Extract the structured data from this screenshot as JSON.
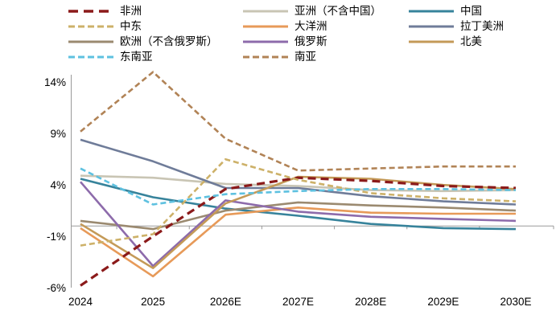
{
  "chart_data": {
    "type": "line",
    "categories": [
      "2024",
      "2025",
      "2026E",
      "2027E",
      "2028E",
      "2029E",
      "2030E"
    ],
    "series": [
      {
        "name": "非洲",
        "color": "#8b1a1a",
        "line_style": "dashed",
        "thick": true,
        "values": [
          -5.8,
          -1.0,
          3.6,
          4.7,
          4.4,
          3.9,
          3.7
        ]
      },
      {
        "name": "亚洲（不含中国）",
        "color": "#c9c5b4",
        "line_style": "solid",
        "thick": false,
        "values": [
          4.9,
          4.7,
          4.1,
          3.9,
          3.5,
          3.4,
          3.5
        ]
      },
      {
        "name": "中国",
        "color": "#37839b",
        "line_style": "solid",
        "thick": false,
        "values": [
          4.6,
          2.8,
          1.7,
          1.0,
          0.2,
          -0.2,
          -0.3
        ]
      },
      {
        "name": "中东",
        "color": "#cdb169",
        "line_style": "dashed",
        "thick": false,
        "values": [
          -1.9,
          -0.8,
          6.5,
          4.5,
          3.2,
          2.7,
          2.4
        ]
      },
      {
        "name": "大洋洲",
        "color": "#e79a59",
        "line_style": "solid",
        "thick": false,
        "values": [
          -0.2,
          -4.9,
          1.1,
          1.8,
          1.3,
          1.2,
          1.2
        ]
      },
      {
        "name": "拉丁美洲",
        "color": "#6f7c99",
        "line_style": "solid",
        "thick": false,
        "values": [
          8.4,
          6.3,
          3.7,
          3.7,
          2.9,
          2.4,
          2.1
        ]
      },
      {
        "name": "欧洲（不含俄罗斯）",
        "color": "#9b8a70",
        "line_style": "solid",
        "thick": false,
        "values": [
          0.5,
          -0.3,
          1.5,
          2.3,
          2.0,
          1.8,
          1.5
        ]
      },
      {
        "name": "俄罗斯",
        "color": "#8d6bab",
        "line_style": "solid",
        "thick": false,
        "values": [
          4.3,
          -3.9,
          2.5,
          1.4,
          0.9,
          0.7,
          0.5
        ]
      },
      {
        "name": "北美",
        "color": "#c49a58",
        "line_style": "solid",
        "thick": false,
        "values": [
          0.2,
          -4.1,
          2.2,
          4.8,
          4.6,
          4.0,
          3.6
        ]
      },
      {
        "name": "东南亚",
        "color": "#5ec1e0",
        "line_style": "dashed",
        "thick": false,
        "values": [
          5.6,
          2.1,
          3.1,
          3.4,
          3.6,
          3.6,
          3.5
        ]
      },
      {
        "name": "南亚",
        "color": "#b18356",
        "line_style": "dashed",
        "thick": false,
        "values": [
          9.2,
          15.0,
          8.5,
          5.4,
          5.6,
          5.8,
          5.8
        ]
      }
    ],
    "y_axis": {
      "tick_values": [
        14,
        9,
        4,
        -1,
        -6
      ],
      "tick_labels": [
        "14%",
        "9%",
        "4%",
        "-1%",
        "-6%"
      ],
      "ylim": [
        -6.5,
        15.5
      ],
      "zero_line": true
    },
    "x_axis": {
      "labels": [
        "2024",
        "2025",
        "2026E",
        "2027E",
        "2028E",
        "2029E",
        "2030E"
      ]
    },
    "legend_position": "top",
    "grid": "zero-line-only",
    "axis_color": "#9a9a9a",
    "label_color": "#000000"
  }
}
